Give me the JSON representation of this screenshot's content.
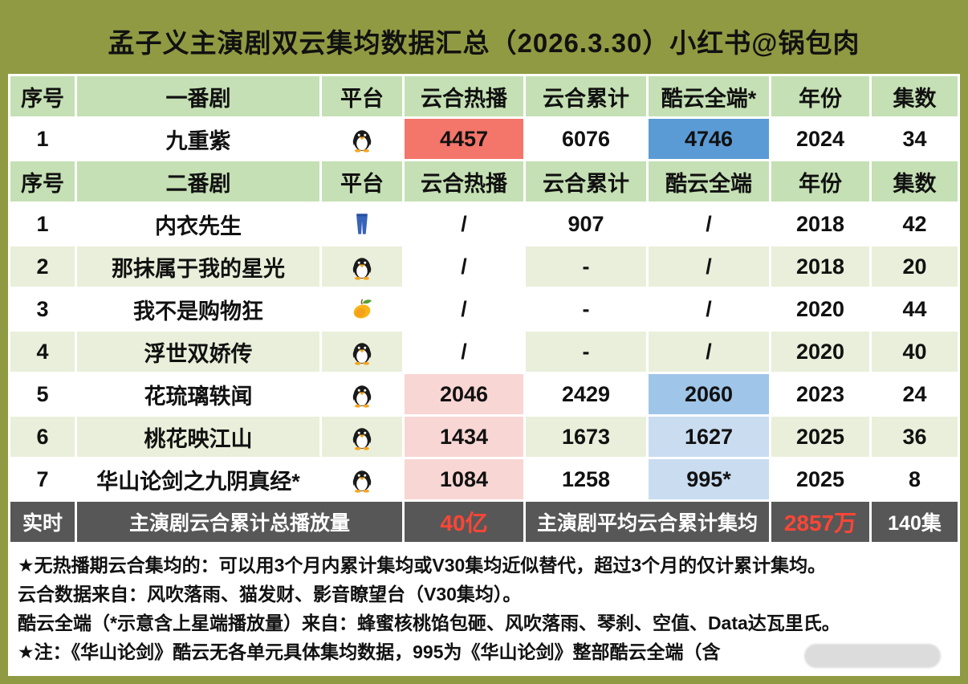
{
  "chart_data": {
    "type": "table",
    "title": "孟子义主演剧双云集均数据汇总（2026.3.30）小红书@锅包肉",
    "table1": {
      "headers": [
        "序号",
        "一番剧",
        "平台",
        "云合热播",
        "云合累计",
        "酷云全端*",
        "年份",
        "集数"
      ],
      "rows": [
        {
          "no": "1",
          "name": "九重紫",
          "platform_icon": "penguin-icon",
          "hot": "4457",
          "total": "6076",
          "kuyun": "4746",
          "year": "2024",
          "eps": "34"
        }
      ]
    },
    "table2": {
      "headers": [
        "序号",
        "二番剧",
        "平台",
        "云合热播",
        "云合累计",
        "酷云全端",
        "年份",
        "集数"
      ],
      "rows": [
        {
          "no": "1",
          "name": "内衣先生",
          "platform_icon": "jeans-icon",
          "hot": "/",
          "total": "907",
          "kuyun": "/",
          "year": "2018",
          "eps": "42"
        },
        {
          "no": "2",
          "name": "那抹属于我的星光",
          "platform_icon": "penguin-icon",
          "hot": "/",
          "total": "-",
          "kuyun": "/",
          "year": "2018",
          "eps": "20"
        },
        {
          "no": "3",
          "name": "我不是购物狂",
          "platform_icon": "mango-icon",
          "hot": "/",
          "total": "-",
          "kuyun": "/",
          "year": "2020",
          "eps": "44"
        },
        {
          "no": "4",
          "name": "浮世双娇传",
          "platform_icon": "penguin-icon",
          "hot": "/",
          "total": "-",
          "kuyun": "/",
          "year": "2020",
          "eps": "40"
        },
        {
          "no": "5",
          "name": "花琉璃轶闻",
          "platform_icon": "penguin-icon",
          "hot": "2046",
          "total": "2429",
          "kuyun": "2060",
          "year": "2023",
          "eps": "24"
        },
        {
          "no": "6",
          "name": "桃花映江山",
          "platform_icon": "penguin-icon",
          "hot": "1434",
          "total": "1673",
          "kuyun": "1627",
          "year": "2025",
          "eps": "36"
        },
        {
          "no": "7",
          "name": "华山论剑之九阴真经*",
          "platform_icon": "penguin-icon",
          "hot": "1084",
          "total": "1258",
          "kuyun": "995*",
          "year": "2025",
          "eps": "8"
        }
      ]
    },
    "summary": {
      "realtime_label": "实时",
      "total_label": "主演剧云合累计总播放量",
      "total_value": "40亿",
      "avg_label": "主演剧平均云合累计集均",
      "avg_value": "2857万",
      "episodes_total": "140集"
    },
    "notes": [
      "★无热播期云合集均的：可以用3个月内累计集均或V30集均近似替代，超过3个月的仅计累计集均。",
      "云合数据来自：风吹落雨、猫发财、影音瞭望台（V30集均）。",
      "酷云全端（*示意含上星端播放量）来自：蜂蜜核桃馅包砸、风吹落雨、琴刹、空值、Data达瓦里氏。",
      "★注：《华山论剑》酷云无各单元具体集均数据，995为《华山论剑》整部酷云全端（含"
    ]
  },
  "colors": {
    "frame": "#909a42",
    "header_green": "#c5e0b4",
    "row_alt": "#e9efda",
    "hot_strong": "#f4756a",
    "kuyun_strong": "#5b9bd5",
    "hot_light": "#f8d6d4",
    "kuyun_mid": "#9fc5e8",
    "kuyun_light": "#c9dcf0",
    "summary_bg": "#575757",
    "summary_red": "#ff4536"
  }
}
